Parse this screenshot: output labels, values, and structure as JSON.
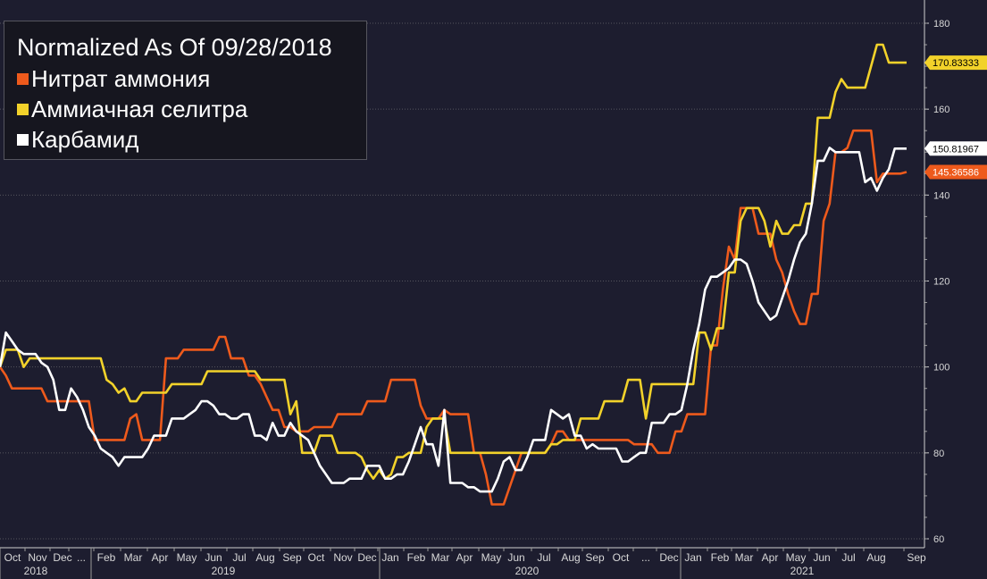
{
  "legend": {
    "title": "Normalized As Of 09/28/2018",
    "items": [
      {
        "label": "Нитрат аммония",
        "color": "#ee5a1c"
      },
      {
        "label": "Аммиачная селитра",
        "color": "#f2d22a"
      },
      {
        "label": "Карбамид",
        "color": "#ffffff"
      }
    ]
  },
  "colors": {
    "background": "#1d1d2f",
    "grid": "#55555e",
    "axis_text": "#d8d8d8"
  },
  "chart_data": {
    "type": "line",
    "x_start": "2018-09-28",
    "x_unit": "week",
    "ylim": [
      59,
      183
    ],
    "yticks": [
      60,
      80,
      100,
      120,
      140,
      160,
      180
    ],
    "grid": true,
    "legend_position": "top-left",
    "month_ticks": [
      "Oct",
      "Nov",
      "Dec",
      "...",
      "Feb",
      "Mar",
      "Apr",
      "May",
      "Jun",
      "Jul",
      "Aug",
      "Sep",
      "Oct",
      "Nov",
      "Dec",
      "Jan",
      "Feb",
      "Mar",
      "Apr",
      "May",
      "Jun",
      "Jul",
      "Aug",
      "Sep",
      "Oct",
      "...",
      "Dec",
      "Jan",
      "Feb",
      "Mar",
      "Apr",
      "May",
      "Jun",
      "Jul",
      "Aug",
      "Sep"
    ],
    "year_labels": [
      "2018",
      "2019",
      "2020",
      "2021"
    ],
    "series": [
      {
        "name": "Нитрат аммония",
        "color": "#ee5a1c",
        "last_value_label": "145.36586",
        "values": [
          100,
          98,
          95,
          95,
          95,
          95,
          95,
          95,
          92,
          92,
          92,
          92,
          92,
          92,
          92,
          92,
          83,
          83,
          83,
          83,
          83,
          83,
          88,
          89,
          83,
          83,
          83,
          83,
          102,
          102,
          102,
          104,
          104,
          104,
          104,
          104,
          104,
          107,
          107,
          102,
          102,
          102,
          98,
          98,
          96,
          93,
          90,
          90,
          86,
          86,
          85,
          85,
          85,
          86,
          86,
          86,
          86,
          89,
          89,
          89,
          89,
          89,
          92,
          92,
          92,
          92,
          97,
          97,
          97,
          97,
          97,
          91,
          88,
          88,
          88,
          90,
          89,
          89,
          89,
          89,
          80,
          80,
          75,
          68,
          68,
          68,
          72,
          76,
          80,
          80,
          80,
          80,
          80,
          82,
          85,
          85,
          83,
          83,
          83,
          83,
          83,
          83,
          83,
          83,
          83,
          83,
          83,
          82,
          82,
          82,
          82,
          80,
          80,
          80,
          85,
          85,
          89,
          89,
          89,
          89,
          105,
          105,
          118,
          128,
          125,
          137,
          137,
          137,
          131,
          131,
          131,
          125,
          122,
          117,
          113,
          110,
          110,
          117,
          117,
          134,
          138,
          150,
          150,
          151,
          155,
          155,
          155,
          155,
          143,
          145,
          145,
          145,
          145,
          145.37
        ]
      },
      {
        "name": "Аммиачная селитра",
        "color": "#f2d22a",
        "last_value_label": "170.83333",
        "values": [
          100,
          104,
          104,
          104,
          100,
          102,
          102,
          102,
          102,
          102,
          102,
          102,
          102,
          102,
          102,
          102,
          102,
          102,
          97,
          96,
          94,
          95,
          92,
          92,
          94,
          94,
          94,
          94,
          94,
          96,
          96,
          96,
          96,
          96,
          96,
          99,
          99,
          99,
          99,
          99,
          99,
          99,
          99,
          99,
          97,
          97,
          97,
          97,
          97,
          89,
          92,
          80,
          80,
          80,
          84,
          84,
          84,
          80,
          80,
          80,
          80,
          79,
          76,
          74,
          76,
          74,
          75,
          79,
          79,
          80,
          80,
          80,
          86,
          88,
          88,
          88,
          80,
          80,
          80,
          80,
          80,
          80,
          80,
          80,
          80,
          80,
          80,
          80,
          80,
          80,
          80,
          80,
          80,
          82,
          82,
          83,
          83,
          83,
          88,
          88,
          88,
          88,
          92,
          92,
          92,
          92,
          97,
          97,
          97,
          88,
          96,
          96,
          96,
          96,
          96,
          96,
          96,
          96,
          108,
          108,
          104,
          109,
          109,
          122,
          122,
          134,
          137,
          137,
          137,
          134,
          128,
          134,
          131,
          131,
          133,
          133,
          138,
          138,
          158,
          158,
          158,
          164,
          167,
          165,
          165,
          165,
          165,
          170,
          175,
          175,
          170.83,
          170.83,
          170.83,
          170.83
        ]
      },
      {
        "name": "Карбамид",
        "color": "#ffffff",
        "last_value_label": "150.81967",
        "values": [
          100,
          108,
          106,
          104,
          103,
          103,
          103,
          101,
          100,
          97,
          90,
          90,
          95,
          93,
          90,
          86,
          84,
          81,
          80,
          79,
          77,
          79,
          79,
          79,
          79,
          81,
          84,
          84,
          84,
          88,
          88,
          88,
          89,
          90,
          92,
          92,
          91,
          89,
          89,
          88,
          88,
          89,
          89,
          84,
          84,
          83,
          87,
          84,
          84,
          87,
          85,
          84,
          83,
          80,
          77,
          75,
          73,
          73,
          73,
          74,
          74,
          74,
          77,
          77,
          77,
          74,
          74,
          75,
          75,
          78,
          82,
          86,
          82,
          82,
          77,
          90,
          73,
          73,
          73,
          72,
          72,
          71,
          71,
          71,
          74,
          78,
          79,
          76,
          76,
          79,
          83,
          83,
          83,
          90,
          89,
          88,
          89,
          84,
          84,
          81,
          82,
          81,
          81,
          81,
          81,
          78,
          78,
          79,
          80,
          80,
          87,
          87,
          87,
          89,
          89,
          90,
          96,
          104,
          110,
          118,
          121,
          121,
          122,
          123,
          125,
          125,
          124,
          120,
          115,
          113,
          111,
          112,
          116,
          120,
          125,
          129,
          131,
          138,
          148,
          148,
          151,
          150,
          150,
          150,
          150,
          150,
          143,
          144,
          141,
          144,
          146,
          150.82,
          150.82,
          150.82
        ]
      }
    ]
  }
}
